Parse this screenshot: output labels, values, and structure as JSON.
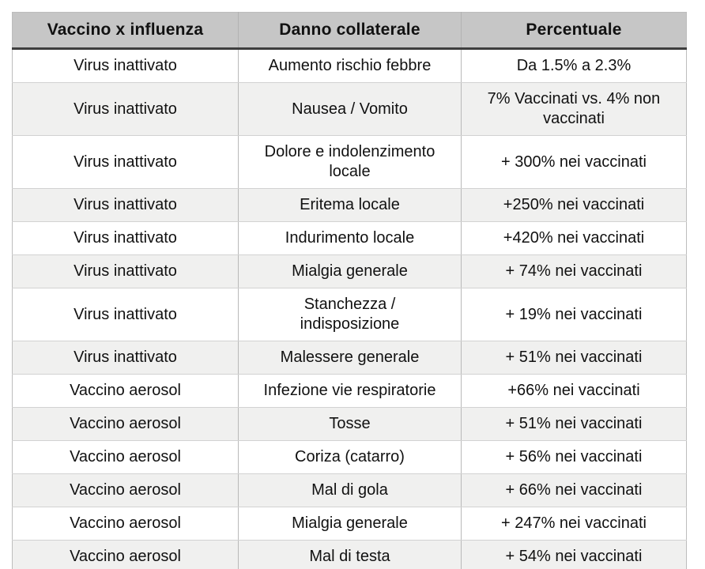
{
  "chart_data": {
    "type": "table",
    "columns": [
      "Vaccino x influenza",
      "Danno collaterale",
      "Percentuale"
    ],
    "rows": [
      [
        "Virus inattivato",
        "Aumento rischio febbre",
        "Da 1.5% a 2.3%"
      ],
      [
        "Virus inattivato",
        "Nausea / Vomito",
        "7% Vaccinati vs. 4% non\nvaccinati"
      ],
      [
        "Virus inattivato",
        "Dolore e indolenzimento\nlocale",
        "+ 300% nei vaccinati"
      ],
      [
        "Virus inattivato",
        "Eritema locale",
        "+250% nei vaccinati"
      ],
      [
        "Virus inattivato",
        "Indurimento locale",
        "+420% nei vaccinati"
      ],
      [
        "Virus inattivato",
        "Mialgia generale",
        "+ 74% nei vaccinati"
      ],
      [
        "Virus inattivato",
        "Stanchezza /\nindisposizione",
        "+ 19% nei vaccinati"
      ],
      [
        "Virus inattivato",
        "Malessere generale",
        "+ 51% nei vaccinati"
      ],
      [
        "Vaccino aerosol",
        "Infezione vie respiratorie",
        "+66% nei vaccinati"
      ],
      [
        "Vaccino aerosol",
        "Tosse",
        "+ 51% nei vaccinati"
      ],
      [
        "Vaccino aerosol",
        "Coriza (catarro)",
        "+ 56% nei vaccinati"
      ],
      [
        "Vaccino aerosol",
        "Mal di gola",
        "+ 66% nei vaccinati"
      ],
      [
        "Vaccino aerosol",
        "Mialgia generale",
        "+ 247% nei vaccinati"
      ],
      [
        "Vaccino aerosol",
        "Mal di testa",
        "+ 54% nei vaccinati"
      ]
    ],
    "layout": {
      "grid": "on",
      "row_striping": "alternating",
      "header_position": "top"
    }
  },
  "colors": {
    "header_bg": "#c6c6c6",
    "header_underline": "#3e3e3e",
    "row_alt_bg": "#f0f0ef",
    "row_bg": "#ffffff",
    "grid_vertical": "#b9b9b9",
    "grid_horizontal": "#d2d2d2",
    "text": "#111111"
  }
}
